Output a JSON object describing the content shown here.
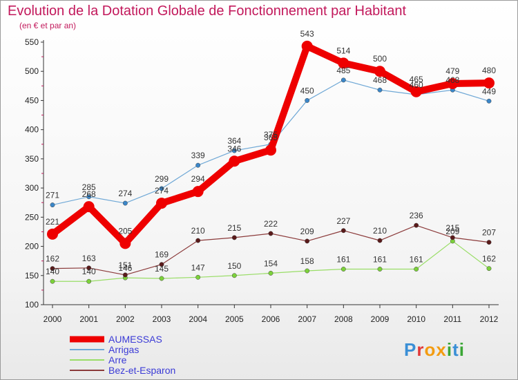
{
  "title": "Evolution de la Dotation Globale de Fonctionnement par Habitant",
  "subtitle": "(en € et par an)",
  "logo": {
    "text": "Proxiti",
    "letters": [
      {
        "ch": "P",
        "color": "#3a8fd6"
      },
      {
        "ch": "r",
        "color": "#e23a3a"
      },
      {
        "ch": "o",
        "color": "#f39c12"
      },
      {
        "ch": "x",
        "color": "#f39c12"
      },
      {
        "ch": "i",
        "color": "#3aa635"
      },
      {
        "ch": "t",
        "color": "#3a8fd6"
      },
      {
        "ch": "i",
        "color": "#3aa635"
      }
    ]
  },
  "chart_data": {
    "type": "line",
    "x": [
      "2000",
      "2001",
      "2002",
      "2003",
      "2004",
      "2005",
      "2006",
      "2007",
      "2008",
      "2009",
      "2010",
      "2011",
      "2012"
    ],
    "ylim": [
      100,
      550
    ],
    "yticks": [
      "100",
      "150",
      "200",
      "250",
      "300",
      "350",
      "400",
      "450",
      "500",
      "550"
    ],
    "grid": false,
    "legend_position": "bottom-left",
    "series": [
      {
        "name": "AUMESSAS",
        "color": "#ee0000",
        "values": [
          221,
          268,
          205,
          274,
          294,
          346,
          365,
          543,
          514,
          500,
          465,
          479,
          480
        ],
        "labels": [
          "221",
          "268",
          "205",
          "274",
          "294",
          "346",
          "365",
          "543",
          "514",
          "500",
          "465",
          "479",
          "480"
        ]
      },
      {
        "name": "Arrigas",
        "color": "#6fa8d6",
        "values": [
          271,
          285,
          274,
          299,
          339,
          364,
          375,
          450,
          485,
          468,
          460,
          468,
          449
        ],
        "labels": [
          "271",
          "285",
          "274",
          "299",
          "339",
          "364",
          "375",
          "450",
          "485",
          "468",
          "460",
          "468",
          "449"
        ]
      },
      {
        "name": "Arre",
        "color": "#99dd66",
        "values": [
          140,
          140,
          146,
          145,
          147,
          150,
          154,
          158,
          161,
          161,
          161,
          209,
          162
        ],
        "labels": [
          "140",
          "140",
          "146",
          "145",
          "147",
          "150",
          "154",
          "158",
          "161",
          "161",
          "161",
          "209",
          "162"
        ]
      },
      {
        "name": "Bez-et-Esparon",
        "color": "#8b3a3a",
        "values": [
          162,
          163,
          151,
          169,
          210,
          215,
          222,
          209,
          227,
          210,
          236,
          215,
          207
        ],
        "labels": [
          "162",
          "163",
          "151",
          "169",
          "210",
          "215",
          "222",
          "209",
          "227",
          "210",
          "236",
          "215",
          "207"
        ]
      }
    ]
  }
}
